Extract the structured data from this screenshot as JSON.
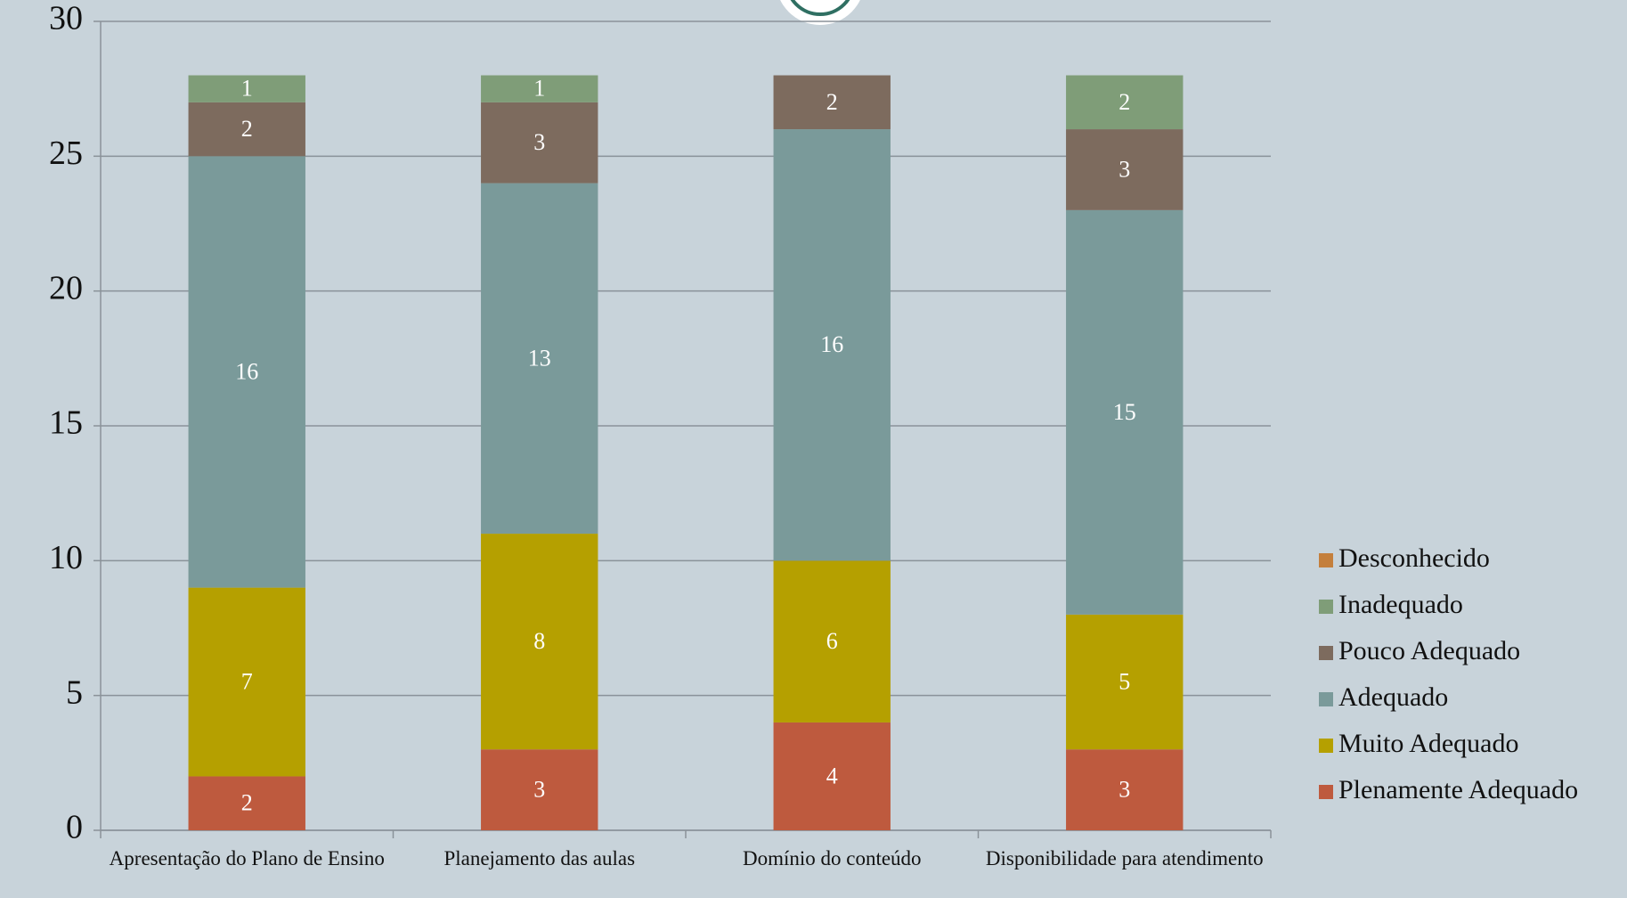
{
  "chart_data": {
    "type": "stacked-bar",
    "categories": [
      "Apresentação do Plano de Ensino",
      "Planejamento das aulas",
      "Domínio do conteúdo",
      "Disponibilidade para atendimento"
    ],
    "series": [
      {
        "name": "Plenamente Adequado",
        "color": "#be5a3e",
        "values": [
          2,
          3,
          4,
          3
        ]
      },
      {
        "name": "Muito Adequado",
        "color": "#b5a000",
        "values": [
          7,
          8,
          6,
          5
        ]
      },
      {
        "name": "Adequado",
        "color": "#7a9a9a",
        "values": [
          16,
          13,
          16,
          15
        ]
      },
      {
        "name": "Pouco Adequado",
        "color": "#7d6b5e",
        "values": [
          2,
          3,
          2,
          3
        ]
      },
      {
        "name": "Inadequado",
        "color": "#7f9d78",
        "values": [
          1,
          1,
          0,
          2
        ]
      },
      {
        "name": "Desconhecido",
        "color": "#c47f3c",
        "values": [
          0,
          0,
          0,
          0
        ]
      }
    ],
    "ylim": [
      0,
      30
    ],
    "yticks": [
      0,
      5,
      10,
      15,
      20,
      25,
      30
    ],
    "grid": true,
    "legend": "right"
  }
}
